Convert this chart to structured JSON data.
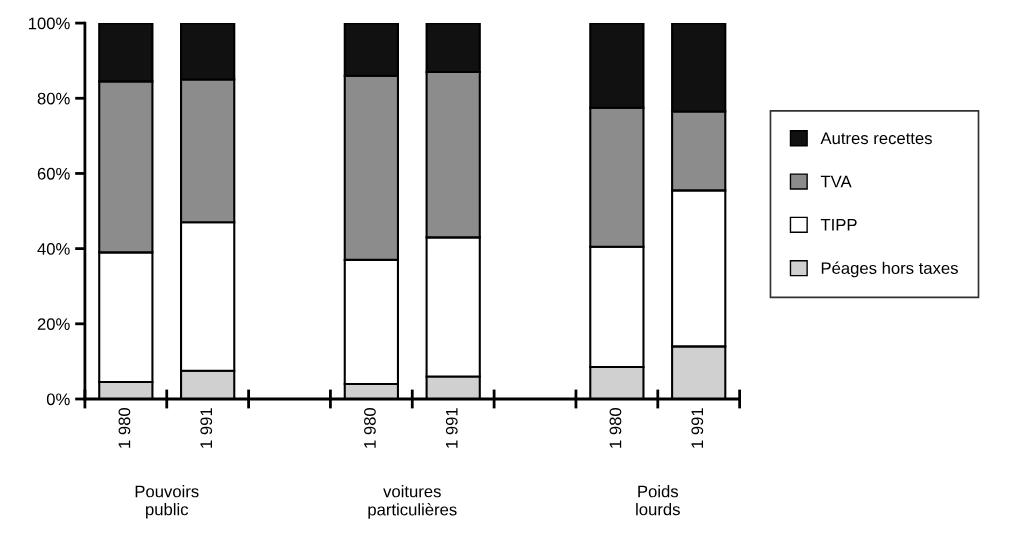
{
  "chart_data": {
    "type": "bar",
    "stacked": true,
    "categories": [
      "1 980",
      "1 991",
      "1 980",
      "1 991",
      "1 980",
      "1 991"
    ],
    "series": [
      {
        "name": "Péages hors taxes",
        "color": "#d0d0d0",
        "values": [
          4.5,
          7.5,
          4,
          6,
          8.5,
          14
        ]
      },
      {
        "name": "TIPP",
        "color": "#ffffff",
        "values": [
          34.5,
          39.5,
          33,
          37,
          32,
          41.5
        ]
      },
      {
        "name": "TVA",
        "color": "#8c8c8c",
        "values": [
          45.5,
          38,
          49,
          44,
          37,
          21
        ]
      },
      {
        "name": "Autres recettes",
        "color": "#111111",
        "values": [
          15.5,
          15,
          14,
          13,
          22.5,
          23.5
        ]
      }
    ],
    "ylim": [
      0,
      100
    ],
    "yticks": [
      {
        "value": 0,
        "label": "0%"
      },
      {
        "value": 20,
        "label": "20%"
      },
      {
        "value": 40,
        "label": "40%"
      },
      {
        "value": 60,
        "label": "60%"
      },
      {
        "value": 80,
        "label": "80%"
      },
      {
        "value": 100,
        "label": "100%"
      }
    ],
    "annotations": [
      "Pouvoirs\npublic",
      "voitures\nparticulières",
      "Poids\nlourds"
    ],
    "legend": "right",
    "grid": false
  }
}
